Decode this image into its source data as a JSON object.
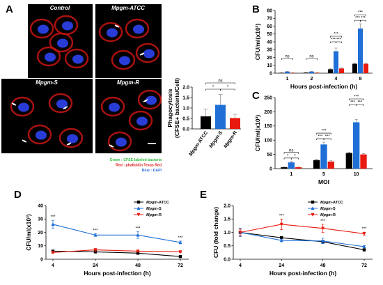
{
  "panel_letters": {
    "A": "A",
    "B": "B",
    "C": "C",
    "D": "D",
    "E": "E"
  },
  "micrographs": [
    {
      "label": "Control",
      "italic": false
    },
    {
      "label": "Mpgm-ATCC",
      "prefix": "Mpgm",
      "suffix": "-ATCC"
    },
    {
      "label": "Mpgm-S",
      "prefix": "Mpgm",
      "suffix": "-S"
    },
    {
      "label": "Mpgm-R",
      "prefix": "Mpgm",
      "suffix": "-R"
    }
  ],
  "stain_legend": [
    {
      "text": "Green : CFSE-labeled bacteria",
      "color": "#2fbf3a"
    },
    {
      "text": "Red : phalloidin Texas Red",
      "color": "#e02020"
    },
    {
      "text": "Blue : DAPI",
      "color": "#2f6fe0"
    }
  ],
  "colors": {
    "atcc": "#000000",
    "s": "#1f6fd6",
    "r": "#e8190f",
    "stain_red": "#c81414",
    "stain_blue": "#2a3cd8"
  },
  "chart_data": [
    {
      "id": "A-inset",
      "type": "bar",
      "categories": [
        "Mpgm-ATCC",
        "Mpgm-S",
        "Mpgm-R"
      ],
      "values": [
        0.6,
        1.15,
        0.52
      ],
      "errors": [
        0.35,
        0.5,
        0.18
      ],
      "ylabel_line1": "Phagocytosis",
      "ylabel_line2": "(CFSE+ bacteria/Cell)",
      "ylim": [
        0.0,
        2.0
      ],
      "yticks": [
        "0.0",
        "0.5",
        "1.0",
        "1.5",
        "2.0"
      ],
      "significance": [
        "ns",
        "*",
        "*"
      ]
    },
    {
      "id": "B",
      "type": "bar",
      "categories": [
        "1",
        "2",
        "4",
        "8"
      ],
      "series": [
        {
          "name": "Mpgm-ATCC",
          "values": [
            0.5,
            0.8,
            5,
            12
          ],
          "errors": [
            0.2,
            0.2,
            1,
            1
          ]
        },
        {
          "name": "Mpgm-S",
          "values": [
            2,
            2,
            28,
            57
          ],
          "errors": [
            0.4,
            0.4,
            4,
            6
          ]
        },
        {
          "name": "Mpgm-R",
          "values": [
            0.5,
            0.6,
            6,
            12
          ],
          "errors": [
            0.2,
            0.2,
            1,
            1
          ]
        }
      ],
      "xlabel": "Hours post-infection (h)",
      "ylabel": "CFU/ml(x10³)",
      "ylim": [
        0,
        80
      ],
      "yticks": [
        "0",
        "10",
        "20",
        "30",
        "40",
        "50",
        "60",
        "70",
        "80"
      ],
      "significance": [
        "ns",
        "ns",
        "***",
        "***"
      ]
    },
    {
      "id": "C",
      "type": "bar",
      "categories": [
        "1",
        "5",
        "10"
      ],
      "series": [
        {
          "name": "Mpgm-ATCC",
          "values": [
            5,
            30,
            55
          ],
          "errors": [
            1,
            3,
            3
          ]
        },
        {
          "name": "Mpgm-S",
          "values": [
            22,
            85,
            163
          ],
          "errors": [
            3,
            8,
            10
          ]
        },
        {
          "name": "Mpgm-R",
          "values": [
            5,
            25,
            50
          ],
          "errors": [
            1,
            3,
            3
          ]
        }
      ],
      "xlabel": "MOI",
      "ylabel": "CFU/ml(x10³)",
      "ylim": [
        0,
        250
      ],
      "yticks": [
        "0",
        "50",
        "100",
        "150",
        "200",
        "250"
      ],
      "significance": [
        "ns",
        "***",
        "***"
      ]
    },
    {
      "id": "D",
      "type": "line",
      "x": [
        "4",
        "24",
        "48",
        "72"
      ],
      "series": [
        {
          "name": "Mpgm-ATCC",
          "values": [
            6,
            5.5,
            4.5,
            2
          ],
          "errors": [
            0.5,
            0.5,
            0.5,
            0.3
          ]
        },
        {
          "name": "Mpgm-S",
          "values": [
            26,
            18,
            18,
            12.5
          ],
          "errors": [
            3,
            1,
            2.5,
            1
          ]
        },
        {
          "name": "Mpgm-R",
          "values": [
            5,
            7,
            6,
            5.5
          ],
          "errors": [
            0.5,
            1,
            0.5,
            0.5
          ]
        }
      ],
      "xlabel": "Hours post-infection (h)",
      "ylabel": "CFU/ml(x10³)",
      "ylim": [
        0,
        40
      ],
      "yticks": [
        "0",
        "10",
        "20",
        "30",
        "40"
      ],
      "significance": [
        "***",
        "***",
        "***",
        "***"
      ]
    },
    {
      "id": "E",
      "type": "line",
      "x": [
        "4",
        "24",
        "48",
        "72"
      ],
      "series": [
        {
          "name": "Mpgm-ATCC",
          "values": [
            1.0,
            0.8,
            0.65,
            0.35
          ],
          "errors": [
            0.15,
            0.05,
            0.05,
            0.03
          ]
        },
        {
          "name": "Mpgm-S",
          "values": [
            1.0,
            0.7,
            0.68,
            0.47
          ],
          "errors": [
            0.15,
            0.05,
            0.1,
            0.04
          ]
        },
        {
          "name": "Mpgm-R",
          "values": [
            1.0,
            1.3,
            1.15,
            0.95
          ],
          "errors": [
            0.12,
            0.2,
            0.15,
            0.06
          ]
        }
      ],
      "xlabel": "Hours post-infection (h)",
      "ylabel": "CFU (fold change)",
      "ylim": [
        0.0,
        2.0
      ],
      "yticks": [
        "0.0",
        "0.5",
        "1.0",
        "1.5",
        "2.0"
      ],
      "significance": [
        "***",
        "***",
        "***"
      ]
    }
  ]
}
